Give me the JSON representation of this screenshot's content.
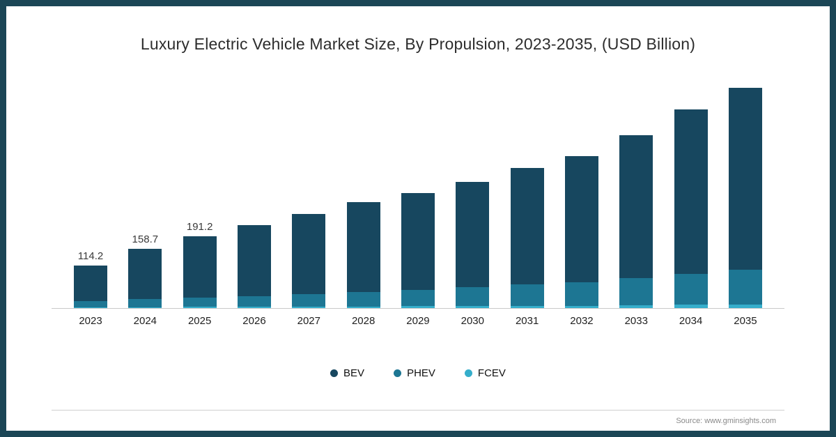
{
  "title": "Luxury Electric Vehicle Market Size, By Propulsion, 2023-2035, (USD Billion)",
  "source": "Source: www.gminsights.com",
  "colors": {
    "frame": "#1b4656",
    "axis": "#c9c9c9",
    "bev": "#17475f",
    "phev": "#1d7693",
    "fcev": "#35aecb"
  },
  "chart_data": {
    "type": "bar",
    "stacked": true,
    "unit": "USD Billion",
    "title": "Luxury Electric Vehicle Market Size, By Propulsion, 2023-2035, (USD Billion)",
    "xlabel": "",
    "ylabel": "",
    "grid": false,
    "legend_position": "bottom",
    "ylim": [
      0,
      620
    ],
    "categories": [
      "2023",
      "2024",
      "2025",
      "2026",
      "2027",
      "2028",
      "2029",
      "2030",
      "2031",
      "2032",
      "2033",
      "2034",
      "2035"
    ],
    "series": [
      {
        "name": "BEV",
        "color": "#17475f",
        "values": [
          95.2,
          135.2,
          163.2,
          189.5,
          214,
          239.5,
          259,
          280.5,
          311,
          335.5,
          382.5,
          440.5,
          485
        ]
      },
      {
        "name": "PHEV",
        "color": "#1d7693",
        "values": [
          17,
          21,
          25,
          29,
          34,
          39,
          44,
          50,
          57,
          63,
          72,
          82,
          93
        ]
      },
      {
        "name": "FCEV",
        "color": "#35aecb",
        "values": [
          2,
          2.5,
          3,
          3.5,
          4,
          4.5,
          5,
          5.5,
          6,
          6.5,
          7.5,
          8.5,
          10
        ]
      }
    ],
    "totals": [
      114.2,
      158.7,
      191.2,
      222,
      252,
      283,
      308,
      336,
      374,
      405,
      462,
      531,
      588
    ],
    "data_labels": [
      "114.2",
      "158.7",
      "191.2",
      null,
      null,
      null,
      null,
      null,
      null,
      null,
      null,
      null,
      null
    ]
  }
}
